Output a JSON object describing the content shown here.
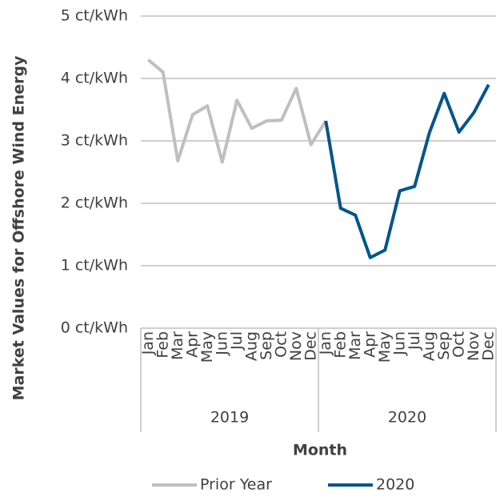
{
  "chart_data": {
    "type": "line",
    "y_label": "Market Values for Offshore Wind Energy",
    "x_label": "Month",
    "categories": [
      "Jan",
      "Feb",
      "Mar",
      "Apr",
      "May",
      "Jun",
      "Jul",
      "Aug",
      "Sep",
      "Oct",
      "Nov",
      "Dec",
      "Jan",
      "Feb",
      "Mar",
      "Apr",
      "May",
      "Jun",
      "Jul",
      "Aug",
      "Sep",
      "Oct",
      "Nov",
      "Dec"
    ],
    "groups": [
      "2019",
      "2020"
    ],
    "series": [
      {
        "name": "Prior Year",
        "color": "#bfbfbf",
        "values": [
          4.3,
          4.1,
          2.68,
          3.42,
          3.56,
          2.66,
          3.65,
          3.2,
          3.32,
          3.33,
          3.84,
          2.94,
          3.32,
          null,
          null,
          null,
          null,
          null,
          null,
          null,
          null,
          null,
          null,
          null
        ]
      },
      {
        "name": "2020",
        "color": "#00558c",
        "values": [
          null,
          null,
          null,
          null,
          null,
          null,
          null,
          null,
          null,
          null,
          null,
          null,
          3.32,
          1.92,
          1.81,
          1.13,
          1.25,
          2.2,
          2.27,
          3.13,
          3.76,
          3.14,
          3.45,
          3.9
        ]
      }
    ],
    "ylim": [
      0,
      5
    ],
    "yticks": [
      {
        "value": 0,
        "label": "0 ct/kWh"
      },
      {
        "value": 1,
        "label": "1 ct/kWh"
      },
      {
        "value": 2,
        "label": "2 ct/kWh"
      },
      {
        "value": 3,
        "label": "3 ct/kWh"
      },
      {
        "value": 4,
        "label": "4 ct/kWh"
      },
      {
        "value": 5,
        "label": "5 ct/kWh"
      }
    ],
    "grid": true,
    "legend": "bottom"
  }
}
